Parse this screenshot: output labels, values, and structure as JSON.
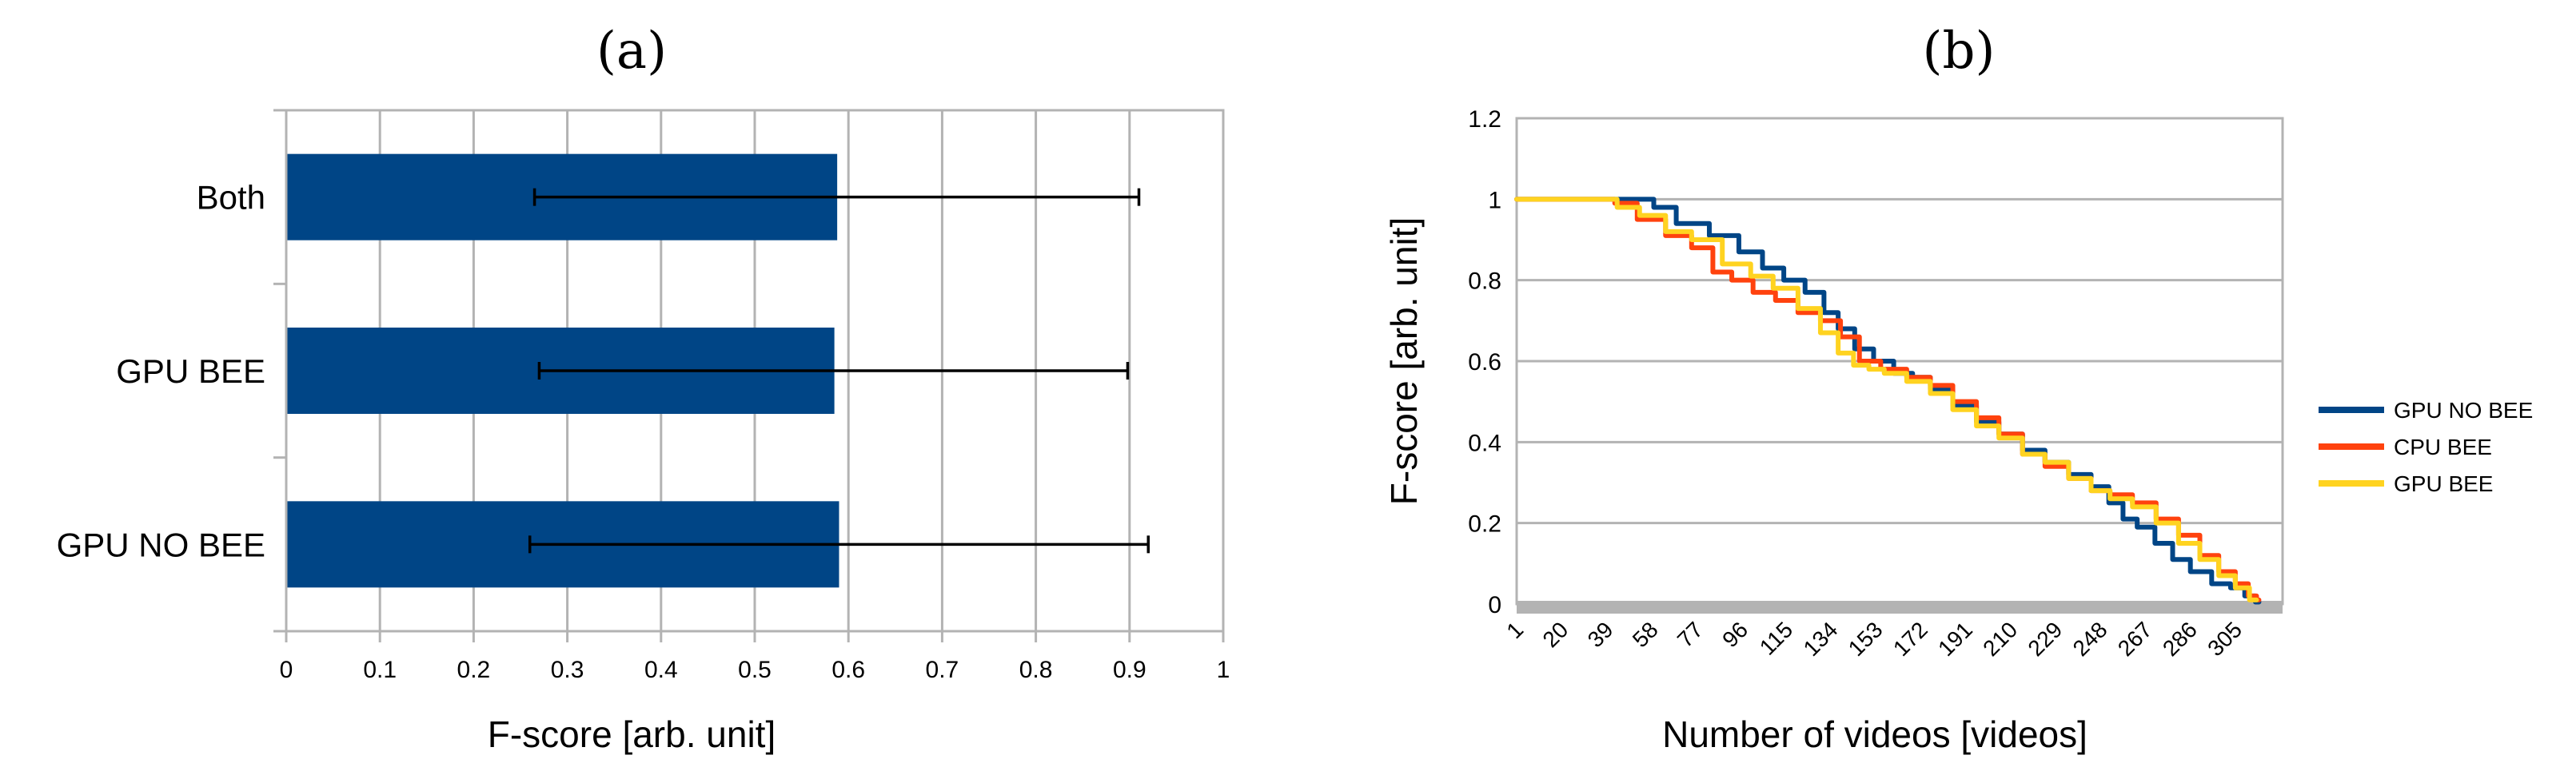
{
  "chart_data": [
    {
      "panel_label": "(a)",
      "type": "bar",
      "orientation": "horizontal",
      "categories": [
        "Both",
        "GPU BEE",
        "GPU NO BEE"
      ],
      "values": [
        0.588,
        0.585,
        0.59
      ],
      "error_low": [
        0.265,
        0.27,
        0.26
      ],
      "error_high": [
        0.91,
        0.898,
        0.92
      ],
      "xlabel": "F-score [arb. unit]",
      "xlim": [
        0,
        1
      ],
      "xticks": [
        "0",
        "0.1",
        "0.2",
        "0.3",
        "0.4",
        "0.5",
        "0.6",
        "0.7",
        "0.8",
        "0.9",
        "1"
      ],
      "grid": true,
      "bar_color": "#004586",
      "error_color": "#000000"
    },
    {
      "panel_label": "(b)",
      "type": "line",
      "xlabel": "Number of videos [videos]",
      "ylabel": "F-score [arb. unit]",
      "ylim": [
        0,
        1.2
      ],
      "yticks": [
        "0",
        "0.2",
        "0.4",
        "0.6",
        "0.8",
        "1",
        "1.2"
      ],
      "xlim": [
        1,
        325
      ],
      "xticks": [
        "1",
        "20",
        "39",
        "58",
        "77",
        "96",
        "115",
        "134",
        "153",
        "172",
        "191",
        "210",
        "229",
        "248",
        "267",
        "286",
        "305"
      ],
      "grid": true,
      "legend_position": "right",
      "series": [
        {
          "name": "GPU NO BEE",
          "color": "#004586",
          "points": [
            [
              1,
              1
            ],
            [
              39,
              1
            ],
            [
              56,
              1
            ],
            [
              62,
              0.98
            ],
            [
              75,
              0.94
            ],
            [
              90,
              0.91
            ],
            [
              100,
              0.87
            ],
            [
              110,
              0.83
            ],
            [
              118,
              0.8
            ],
            [
              128,
              0.77
            ],
            [
              134,
              0.72
            ],
            [
              140,
              0.68
            ],
            [
              148,
              0.63
            ],
            [
              156,
              0.6
            ],
            [
              165,
              0.57
            ],
            [
              172,
              0.56
            ],
            [
              180,
              0.53
            ],
            [
              191,
              0.49
            ],
            [
              200,
              0.45
            ],
            [
              210,
              0.42
            ],
            [
              220,
              0.38
            ],
            [
              229,
              0.35
            ],
            [
              240,
              0.32
            ],
            [
              248,
              0.29
            ],
            [
              255,
              0.25
            ],
            [
              260,
              0.21
            ],
            [
              267,
              0.19
            ],
            [
              275,
              0.15
            ],
            [
              282,
              0.11
            ],
            [
              290,
              0.08
            ],
            [
              300,
              0.05
            ],
            [
              306,
              0.04
            ],
            [
              312,
              0.02
            ],
            [
              315,
              0.005
            ]
          ]
        },
        {
          "name": "CPU BEE",
          "color": "#ff420e",
          "points": [
            [
              1,
              1
            ],
            [
              39,
              1
            ],
            [
              46,
              0.99
            ],
            [
              58,
              0.95
            ],
            [
              70,
              0.91
            ],
            [
              80,
              0.88
            ],
            [
              88,
              0.82
            ],
            [
              96,
              0.8
            ],
            [
              106,
              0.77
            ],
            [
              115,
              0.75
            ],
            [
              125,
              0.72
            ],
            [
              134,
              0.7
            ],
            [
              142,
              0.66
            ],
            [
              150,
              0.6
            ],
            [
              160,
              0.58
            ],
            [
              172,
              0.56
            ],
            [
              180,
              0.54
            ],
            [
              191,
              0.5
            ],
            [
              200,
              0.46
            ],
            [
              210,
              0.42
            ],
            [
              220,
              0.37
            ],
            [
              229,
              0.34
            ],
            [
              240,
              0.31
            ],
            [
              248,
              0.28
            ],
            [
              256,
              0.27
            ],
            [
              267,
              0.25
            ],
            [
              276,
              0.21
            ],
            [
              286,
              0.17
            ],
            [
              294,
              0.12
            ],
            [
              302,
              0.08
            ],
            [
              308,
              0.05
            ],
            [
              313,
              0.02
            ],
            [
              315,
              0.01
            ]
          ]
        },
        {
          "name": "GPU BEE",
          "color": "#ffd320",
          "points": [
            [
              1,
              1
            ],
            [
              39,
              1
            ],
            [
              48,
              0.98
            ],
            [
              58,
              0.96
            ],
            [
              70,
              0.92
            ],
            [
              80,
              0.9
            ],
            [
              96,
              0.84
            ],
            [
              104,
              0.81
            ],
            [
              115,
              0.78
            ],
            [
              125,
              0.73
            ],
            [
              134,
              0.67
            ],
            [
              140,
              0.62
            ],
            [
              147,
              0.59
            ],
            [
              153,
              0.58
            ],
            [
              160,
              0.57
            ],
            [
              172,
              0.55
            ],
            [
              180,
              0.52
            ],
            [
              191,
              0.48
            ],
            [
              200,
              0.44
            ],
            [
              210,
              0.41
            ],
            [
              220,
              0.37
            ],
            [
              229,
              0.35
            ],
            [
              240,
              0.31
            ],
            [
              248,
              0.28
            ],
            [
              256,
              0.26
            ],
            [
              267,
              0.24
            ],
            [
              276,
              0.2
            ],
            [
              286,
              0.15
            ],
            [
              294,
              0.11
            ],
            [
              302,
              0.07
            ],
            [
              308,
              0.04
            ],
            [
              314,
              0.01
            ]
          ]
        }
      ]
    }
  ]
}
